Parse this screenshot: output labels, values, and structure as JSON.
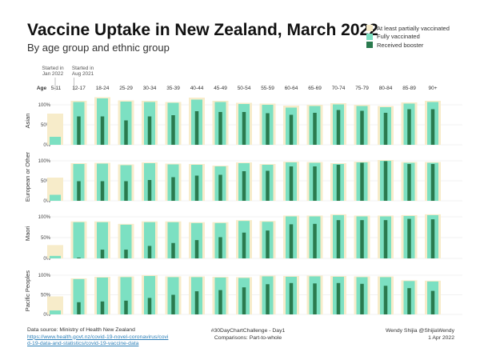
{
  "title": "Vaccine Uptake in New Zealand, March 2022",
  "subtitle": "By age group and ethnic group",
  "legend": [
    {
      "label": "At least partially vaccinated",
      "color": "#f7ecca"
    },
    {
      "label": "Fully vaccinated",
      "color": "#7ce0c2"
    },
    {
      "label": "Received booster",
      "color": "#2a7a4e"
    }
  ],
  "annotations": {
    "start_jan": "Started in\nJan 2022",
    "start_aug": "Started in\nAug 2021"
  },
  "footer": {
    "source_label": "Data source: Ministry of Health New Zealand",
    "source_url": "https://www.health.govt.nz/covid-19-novel-coronavirus/covid-19-data-and-statistics/covid-19-vaccine-data",
    "challenge": "#30DayChartChallenge - Day1",
    "theme": "Comparisons: Part-to-whole",
    "author": "Wendy Shijia  @ShijiaWendy",
    "date": "1 Apr 2022"
  },
  "chart_data": {
    "type": "bar",
    "age_header": "Age",
    "categories": [
      "5-11",
      "12-17",
      "18-24",
      "25-29",
      "30-34",
      "35-39",
      "40-44",
      "45-49",
      "50-54",
      "55-59",
      "60-64",
      "65-69",
      "70-74",
      "75-79",
      "80-84",
      "85-89",
      "90+"
    ],
    "y_ticks": [
      "0%",
      "50%",
      "100%"
    ],
    "ylim": [
      0,
      1.2
    ],
    "panels": [
      {
        "name": "Asian",
        "partial": [
          0.78,
          1.1,
          1.19,
          1.11,
          1.1,
          1.07,
          1.18,
          1.1,
          1.05,
          1.03,
          0.98,
          1.0,
          1.04,
          1.0,
          0.97,
          1.06,
          1.1
        ],
        "full": [
          0.2,
          1.07,
          1.16,
          1.08,
          1.07,
          1.05,
          1.13,
          1.07,
          1.02,
          1.0,
          0.93,
          0.97,
          1.01,
          0.97,
          0.94,
          1.03,
          1.07
        ],
        "booster": [
          0,
          0.71,
          0.71,
          0.61,
          0.71,
          0.74,
          0.84,
          0.82,
          0.82,
          0.79,
          0.75,
          0.8,
          0.87,
          0.85,
          0.8,
          0.89,
          0.89
        ]
      },
      {
        "name": "European or Other",
        "partial": [
          0.58,
          0.94,
          0.95,
          0.91,
          0.96,
          0.93,
          0.92,
          0.88,
          0.96,
          0.92,
          0.98,
          0.97,
          0.94,
          0.98,
          1.02,
          0.97,
          0.97
        ],
        "full": [
          0.15,
          0.92,
          0.93,
          0.89,
          0.94,
          0.91,
          0.9,
          0.86,
          0.94,
          0.9,
          0.96,
          0.95,
          0.92,
          0.96,
          1.0,
          0.95,
          0.95
        ],
        "booster": [
          0,
          0.49,
          0.49,
          0.49,
          0.52,
          0.59,
          0.63,
          0.65,
          0.74,
          0.75,
          0.86,
          0.86,
          0.9,
          0.95,
          0.99,
          0.92,
          0.92
        ]
      },
      {
        "name": "Maori",
        "partial": [
          0.32,
          0.89,
          0.89,
          0.83,
          0.89,
          0.89,
          0.87,
          0.87,
          0.92,
          0.9,
          1.03,
          1.03,
          1.06,
          1.03,
          1.03,
          1.04,
          1.06
        ],
        "full": [
          0.06,
          0.87,
          0.87,
          0.81,
          0.87,
          0.87,
          0.85,
          0.85,
          0.9,
          0.88,
          1.01,
          1.01,
          1.04,
          1.01,
          1.01,
          1.02,
          1.04
        ],
        "booster": [
          0,
          0.02,
          0.21,
          0.21,
          0.3,
          0.37,
          0.44,
          0.51,
          0.62,
          0.67,
          0.82,
          0.83,
          0.92,
          0.92,
          0.92,
          0.95,
          0.94
        ]
      },
      {
        "name": "Pacific Peoples",
        "partial": [
          0.46,
          0.92,
          0.96,
          0.97,
          1.0,
          0.97,
          0.97,
          0.96,
          0.95,
          0.99,
          0.98,
          0.99,
          0.98,
          0.97,
          0.97,
          0.87,
          0.86
        ],
        "full": [
          0.1,
          0.9,
          0.94,
          0.95,
          0.98,
          0.95,
          0.95,
          0.94,
          0.93,
          0.97,
          0.96,
          0.97,
          0.96,
          0.95,
          0.95,
          0.85,
          0.84
        ],
        "booster": [
          0,
          0.31,
          0.33,
          0.35,
          0.42,
          0.5,
          0.59,
          0.62,
          0.69,
          0.77,
          0.8,
          0.79,
          0.8,
          0.78,
          0.73,
          0.67,
          0.6
        ]
      }
    ]
  }
}
